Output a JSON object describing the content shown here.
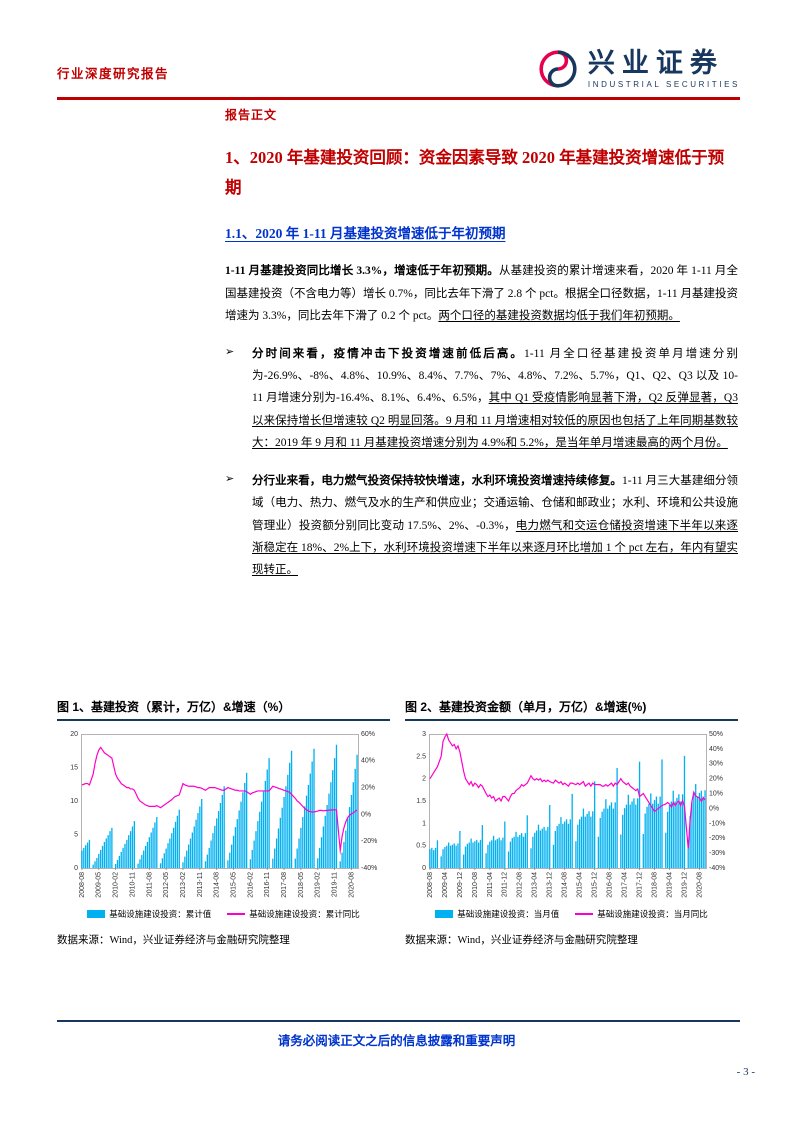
{
  "header": {
    "report_type": "行业深度研究报告",
    "brand_cn": "兴业证券",
    "brand_en": "INDUSTRIAL SECURITIES"
  },
  "content": {
    "body_label": "报告正文",
    "h1": "1、2020 年基建投资回顾：资金因素导致 2020 年基建投资增速低于预期",
    "h2": "1.1、2020 年 1-11 月基建投资增速低于年初预期",
    "p1": [
      {
        "t": "1-11 月基建投资同比增长 3.3%，增速低于年初预期。",
        "b": true
      },
      {
        "t": "从基建投资的累计增速来看，2020 年 1-11 月全国基建投资（不含电力等）增长 0.7%，同比去年下滑了 2.8 个 pct。根据全口径数据，1-11 月基建投资增速为 3.3%，同比去年下滑了 0.2 个 pct。"
      },
      {
        "t": "两个口径的基建投资数据均低于我们年初预期。",
        "u": true
      }
    ],
    "bullets": [
      {
        "marker": "➢",
        "segments": [
          {
            "t": "分时间来看，疫情冲击下投资增速前低后高。",
            "b": true
          },
          {
            "t": "1-11 月全口径基建投资单月增速分别为-26.9%、-8%、4.8%、10.9%、8.4%、7.7%、7%、4.8%、7.2%、5.7%，Q1、Q2、Q3 以及 10-11 月增速分别为-16.4%、8.1%、6.4%、6.5%，"
          },
          {
            "t": "其中 Q1 受疫情影响显著下滑，Q2 反弹显著，Q3 以来保持增长但增速较 Q2 明显回落。9 月和 11 月增速相对较低的原因也包括了上年同期基数较大：2019 年 9 月和 11 月基建投资增速分别为 4.9%和 5.2%，是当年单月增速最高的两个月份。",
            "u": true
          }
        ]
      },
      {
        "marker": "➢",
        "segments": [
          {
            "t": "分行业来看，电力燃气投资保持较快增速，水利环境投资增速持续修复。",
            "b": true
          },
          {
            "t": "1-11 月三大基建细分领域（电力、热力、燃气及水的生产和供应业；交通运输、仓储和邮政业；水利、环境和公共设施管理业）投资额分别同比变动 17.5%、2%、-0.3%，"
          },
          {
            "t": "电力燃气和交运仓储投资增速下半年以来逐渐稳定在 18%、2%上下，水利环境投资增速下半年以来逐月环比增加 1 个 pct 左右，年内有望实现转正。",
            "u": true
          }
        ]
      }
    ]
  },
  "chart_data": [
    {
      "type": "bar+line",
      "title": "图 1、基建投资（累计，万亿）&增速（%）",
      "source": "数据来源：Wind，兴业证券经济与金融研究院整理",
      "bar_color": "#00b0f0",
      "line_color": "#ff00cc",
      "x_tick_step": 9,
      "x_tick_labels": [
        "2008-08",
        "2009-05",
        "2010-02",
        "2010-11",
        "2011-08",
        "2012-05",
        "2013-02",
        "2013-11",
        "2014-08",
        "2015-05",
        "2016-02",
        "2016-11",
        "2017-08",
        "2018-05",
        "2019-02",
        "2019-11",
        "2020-08"
      ],
      "left_axis": {
        "min": 0,
        "max": 20,
        "ticks": [
          0,
          5,
          10,
          15,
          20
        ]
      },
      "right_axis": {
        "min": -40,
        "max": 60,
        "ticks": [
          60,
          40,
          20,
          0,
          -20,
          -40
        ],
        "suffix": "%"
      },
      "series": [
        {
          "name": "基础设施建设投资：累计值",
          "type": "bar",
          "axis": "left",
          "values": [
            2.6,
            3.0,
            3.4,
            3.8,
            4.2,
            null,
            0.5,
            1.0,
            1.5,
            2.1,
            2.7,
            3.3,
            3.9,
            4.4,
            4.9,
            5.5,
            6.0,
            null,
            0.6,
            1.2,
            1.8,
            2.4,
            3.0,
            3.6,
            4.2,
            4.9,
            5.5,
            6.2,
            7.0,
            null,
            0.65,
            1.3,
            1.95,
            2.6,
            3.3,
            3.9,
            4.6,
            5.3,
            6.0,
            6.8,
            7.6,
            null,
            0.7,
            1.45,
            2.2,
            2.9,
            3.7,
            4.4,
            5.2,
            6.0,
            6.9,
            7.8,
            8.7,
            null,
            0.85,
            1.7,
            2.6,
            3.5,
            4.4,
            5.3,
            6.2,
            7.2,
            8.2,
            9.2,
            10.3,
            null,
            1.0,
            2.0,
            3.0,
            4.1,
            5.2,
            6.3,
            7.4,
            8.5,
            9.7,
            10.9,
            12.2,
            null,
            1.15,
            2.3,
            3.5,
            4.8,
            6.1,
            7.3,
            8.6,
            9.9,
            11.3,
            12.7,
            14.2,
            null,
            1.3,
            2.7,
            4.1,
            5.5,
            7.0,
            8.4,
            9.9,
            11.4,
            13.0,
            14.7,
            16.4,
            null,
            1.4,
            2.9,
            4.4,
            5.9,
            7.5,
            9.0,
            10.6,
            12.2,
            13.9,
            15.7,
            17.5,
            null,
            1.4,
            2.9,
            4.4,
            6.0,
            7.6,
            9.2,
            10.8,
            12.4,
            14.1,
            15.9,
            17.8,
            null,
            1.45,
            3.0,
            4.6,
            6.2,
            7.8,
            9.4,
            11.1,
            12.8,
            14.6,
            16.4,
            18.4,
            null,
            1.0,
            2.3,
            3.9,
            5.6,
            7.4,
            9.1,
            10.9,
            12.8,
            14.8,
            16.9
          ]
        },
        {
          "name": "基础设施建设投资：累计同比",
          "type": "line",
          "axis": "right",
          "values": [
            22,
            22.5,
            23,
            23,
            22,
            null,
            30,
            38,
            44,
            48,
            50,
            48,
            46,
            45,
            44,
            43,
            42,
            null,
            30,
            27,
            25,
            23,
            22,
            21,
            20,
            20,
            19,
            19,
            18,
            null,
            12,
            10,
            9,
            8,
            7,
            6.5,
            6,
            6,
            6,
            6,
            6.5,
            null,
            5,
            6,
            7,
            8,
            9,
            10,
            11,
            12.5,
            13.5,
            14,
            14.5,
            null,
            23,
            22,
            21.5,
            21,
            21,
            21,
            21,
            20.5,
            20,
            20,
            19.5,
            null,
            18,
            19,
            20,
            20,
            20,
            20,
            19.5,
            19,
            18.5,
            18,
            18,
            null,
            20,
            19.5,
            19,
            18.5,
            18,
            18,
            17.5,
            17.5,
            17.5,
            17.5,
            17,
            null,
            15,
            16,
            16.5,
            17,
            17.5,
            17.5,
            17.5,
            17.5,
            17.5,
            17.5,
            17.5,
            null,
            21,
            20.5,
            20,
            19.5,
            19,
            18.5,
            18,
            17.5,
            17,
            16.5,
            15,
            null,
            12,
            10,
            9,
            7.5,
            6,
            4.5,
            3.5,
            2.5,
            2,
            1.8,
            1.8,
            null,
            2.5,
            3,
            3,
            2.6,
            2.9,
            2.9,
            3.2,
            3.4,
            3.3,
            3.5,
            3.3,
            null,
            -26.9,
            -16.4,
            -10,
            -5.5,
            -2.4,
            -0.6,
            0.4,
            1.2,
            2.3,
            3.3
          ]
        }
      ]
    },
    {
      "type": "bar+line",
      "title": "图 2、基建投资金额（单月，万亿）&增速(%)",
      "source": "数据来源：Wind，兴业证券经济与金融研究院整理",
      "bar_color": "#00b0f0",
      "line_color": "#ff00cc",
      "x_tick_step": 8,
      "x_tick_labels": [
        "2008-08",
        "2009-04",
        "2009-12",
        "2010-08",
        "2011-04",
        "2011-12",
        "2012-08",
        "2013-04",
        "2013-12",
        "2014-08",
        "2015-04",
        "2015-12",
        "2016-08",
        "2017-04",
        "2017-12",
        "2018-08",
        "2019-04",
        "2019-12",
        "2020-08"
      ],
      "left_axis": {
        "min": 0,
        "max": 3,
        "ticks": [
          0,
          0.5,
          1,
          1.5,
          2,
          2.5,
          3
        ]
      },
      "right_axis": {
        "min": -40,
        "max": 50,
        "ticks": [
          50,
          40,
          30,
          20,
          10,
          0,
          -10,
          -20,
          -30,
          -40
        ],
        "suffix": "%"
      },
      "series": [
        {
          "name": "基础设施建设投资：当月值",
          "type": "bar",
          "axis": "left",
          "values": [
            0.42,
            0.45,
            0.4,
            0.45,
            0.62,
            null,
            0.26,
            0.42,
            0.47,
            0.5,
            0.57,
            0.5,
            0.52,
            0.55,
            0.5,
            0.55,
            0.83,
            null,
            0.3,
            0.48,
            0.54,
            0.57,
            0.66,
            0.57,
            0.6,
            0.63,
            0.57,
            0.63,
            0.96,
            null,
            0.33,
            0.52,
            0.59,
            0.62,
            0.72,
            0.62,
            0.65,
            0.68,
            0.62,
            0.68,
            1.04,
            null,
            0.37,
            0.59,
            0.67,
            0.7,
            0.81,
            0.7,
            0.74,
            0.78,
            0.7,
            0.78,
            1.18,
            null,
            0.44,
            0.7,
            0.79,
            0.84,
            0.97,
            0.84,
            0.88,
            0.92,
            0.84,
            0.92,
            1.41,
            null,
            0.52,
            0.83,
            0.94,
            0.99,
            1.14,
            0.99,
            1.04,
            1.09,
            0.99,
            1.09,
            1.66,
            null,
            0.6,
            0.97,
            1.09,
            1.15,
            1.33,
            1.15,
            1.21,
            1.27,
            1.15,
            1.27,
            1.94,
            null,
            0.7,
            1.12,
            1.26,
            1.33,
            1.54,
            1.33,
            1.4,
            1.47,
            1.33,
            1.47,
            2.24,
            null,
            0.75,
            1.19,
            1.34,
            1.42,
            1.64,
            1.42,
            1.49,
            1.56,
            1.42,
            1.56,
            2.38,
            null,
            0.76,
            1.22,
            1.37,
            1.44,
            1.67,
            1.44,
            1.52,
            1.6,
            1.44,
            1.6,
            2.43,
            null,
            0.79,
            1.26,
            1.41,
            1.49,
            1.73,
            1.49,
            1.57,
            1.65,
            1.49,
            1.65,
            2.51,
            null,
            0.58,
            1.16,
            1.48,
            1.65,
            1.88,
            1.6,
            1.68,
            1.73,
            1.6,
            1.74
          ]
        },
        {
          "name": "基础设施建设投资：当月同比",
          "type": "line",
          "axis": "right",
          "values": [
            20,
            22,
            24,
            26,
            28,
            null,
            35,
            45,
            48,
            50,
            46,
            44,
            42,
            43,
            40,
            42,
            38,
            null,
            25,
            20,
            18,
            16,
            18,
            15,
            17,
            16,
            14,
            16,
            15,
            null,
            10,
            8,
            9,
            7,
            8,
            5,
            6,
            7,
            5,
            8,
            8,
            null,
            5,
            8,
            10,
            10,
            12,
            13,
            14,
            16,
            15,
            16,
            17,
            null,
            22,
            20,
            19,
            20,
            19,
            20,
            18,
            19,
            18,
            19,
            18,
            null,
            17,
            19,
            18,
            17,
            18,
            16,
            17,
            16,
            15,
            17,
            17,
            null,
            16,
            17,
            16,
            17,
            18,
            15,
            16,
            17,
            15,
            17,
            16,
            null,
            16,
            16,
            15,
            15,
            16,
            15,
            16,
            17,
            15,
            17,
            16,
            null,
            20,
            18,
            17,
            16,
            17,
            15,
            14,
            13,
            12,
            13,
            8,
            null,
            10,
            8,
            6,
            4,
            2,
            0,
            -2,
            -1,
            0,
            1,
            2,
            null,
            3,
            4,
            3,
            1,
            4,
            2,
            4,
            4.9,
            2,
            5.2,
            1.5,
            null,
            -26.9,
            -8,
            4.8,
            10.9,
            8.4,
            7.7,
            7,
            4.8,
            7.2,
            5.7
          ]
        }
      ]
    }
  ],
  "footer": {
    "disclaimer": "请务必阅读正文之后的信息披露和重要声明",
    "page_number": "- 3 -"
  }
}
